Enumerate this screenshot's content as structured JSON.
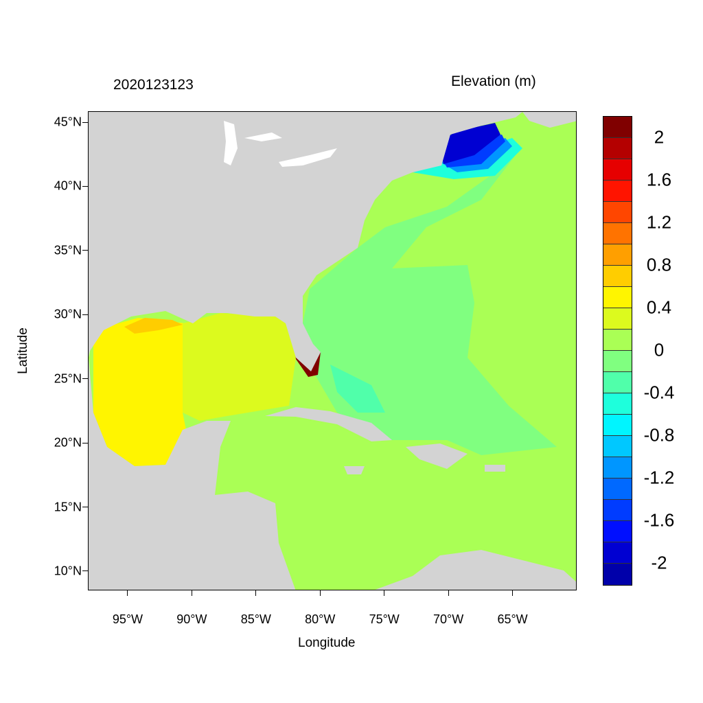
{
  "title_left": "2020123123",
  "title_right": "Elevation (m)",
  "xlabel": "Longitude",
  "ylabel": "Latitude",
  "map": {
    "lon_range": [
      -98.1,
      -60.0
    ],
    "lat_range": [
      8.5,
      45.86
    ],
    "x_ticks": [
      {
        "value": -95,
        "label": "95°W"
      },
      {
        "value": -90,
        "label": "90°W"
      },
      {
        "value": -85,
        "label": "85°W"
      },
      {
        "value": -80,
        "label": "80°W"
      },
      {
        "value": -75,
        "label": "75°W"
      },
      {
        "value": -70,
        "label": "70°W"
      },
      {
        "value": -65,
        "label": "65°W"
      }
    ],
    "y_ticks": [
      {
        "value": 45,
        "label": "45°N"
      },
      {
        "value": 40,
        "label": "40°N"
      },
      {
        "value": 35,
        "label": "35°N"
      },
      {
        "value": 30,
        "label": "30°N"
      },
      {
        "value": 25,
        "label": "25°N"
      },
      {
        "value": 20,
        "label": "20°N"
      },
      {
        "value": 15,
        "label": "15°N"
      },
      {
        "value": 10,
        "label": "10°N"
      }
    ],
    "land_color": "#d3d3d3",
    "lake_color": "#ffffff"
  },
  "colorbar": {
    "colors": [
      "#800000",
      "#b40000",
      "#e60000",
      "#ff1400",
      "#ff4600",
      "#ff7300",
      "#ff9f00",
      "#ffcd00",
      "#fff500",
      "#dcfa1e",
      "#aaff55",
      "#80ff80",
      "#50ffaa",
      "#1effdc",
      "#00f5ff",
      "#00c8ff",
      "#0096ff",
      "#0069ff",
      "#003cff",
      "#000fff",
      "#0000d2",
      "#0000aa"
    ],
    "labels": [
      {
        "boundary": 1,
        "text": "2"
      },
      {
        "boundary": 3,
        "text": "1.6"
      },
      {
        "boundary": 5,
        "text": "1.2"
      },
      {
        "boundary": 7,
        "text": "0.8"
      },
      {
        "boundary": 9,
        "text": "0.4"
      },
      {
        "boundary": 11,
        "text": "0"
      },
      {
        "boundary": 13,
        "text": "-0.4"
      },
      {
        "boundary": 15,
        "text": "-0.8"
      },
      {
        "boundary": 17,
        "text": "-1.2"
      },
      {
        "boundary": 19,
        "text": "-1.6"
      },
      {
        "boundary": 21,
        "text": "-2"
      }
    ]
  }
}
